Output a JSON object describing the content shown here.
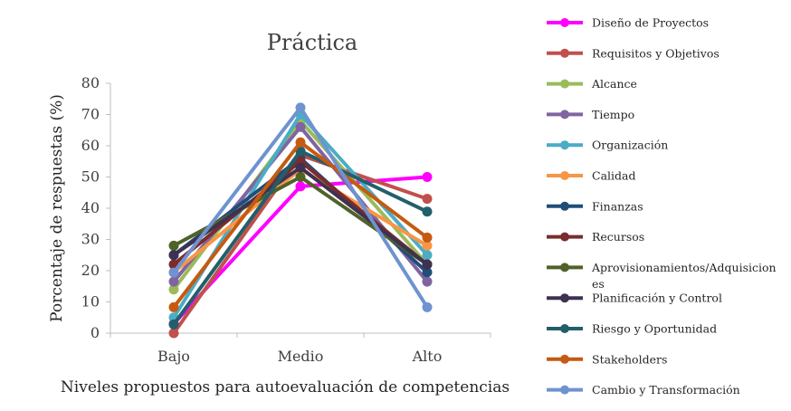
{
  "chart_data": {
    "type": "line",
    "title": "Práctica",
    "xlabel": "Niveles propuestos para autoevaluación de competencias",
    "ylabel": "Porcentaje de respuestas (%)",
    "categories": [
      "Bajo",
      "Medio",
      "Alto"
    ],
    "ylim": [
      0,
      80
    ],
    "yticks": [
      0,
      10,
      20,
      30,
      40,
      50,
      60,
      70,
      80
    ],
    "grid": false,
    "legend_position": "right",
    "series": [
      {
        "name": "Diseño de Proyectos",
        "color": "#ff00ff",
        "values": [
          3,
          47,
          50
        ]
      },
      {
        "name": "Requisitos y Objetivos",
        "color": "#c0504d",
        "values": [
          0,
          57,
          43
        ]
      },
      {
        "name": "Alcance",
        "color": "#9bbb59",
        "values": [
          14,
          68,
          22
        ]
      },
      {
        "name": "Tiempo",
        "color": "#8064a2",
        "values": [
          16.5,
          66,
          16.5
        ]
      },
      {
        "name": "Organización",
        "color": "#4bacc6",
        "values": [
          5,
          70,
          25
        ]
      },
      {
        "name": "Calidad",
        "color": "#f79646",
        "values": [
          19.5,
          52.5,
          28
        ]
      },
      {
        "name": "Finanzas",
        "color": "#1f4e79",
        "values": [
          25,
          56,
          19.5
        ]
      },
      {
        "name": "Recursos",
        "color": "#7b2c2c",
        "values": [
          22,
          55,
          22
        ]
      },
      {
        "name": "Aprovisionamientos/Adquisiciones",
        "color": "#4f6228",
        "values": [
          28,
          50,
          22
        ]
      },
      {
        "name": "Planificación y Control",
        "color": "#3f3151",
        "values": [
          25,
          53,
          22
        ]
      },
      {
        "name": "Riesgo y Oportunidad",
        "color": "#215f6b",
        "values": [
          2.8,
          58.3,
          38.9
        ]
      },
      {
        "name": "Stakeholders",
        "color": "#c55a11",
        "values": [
          8.3,
          61.1,
          30.6
        ]
      },
      {
        "name": "Cambio y Transformación",
        "color": "#6e93cf",
        "values": [
          19.4,
          72.2,
          8.3
        ]
      }
    ]
  }
}
